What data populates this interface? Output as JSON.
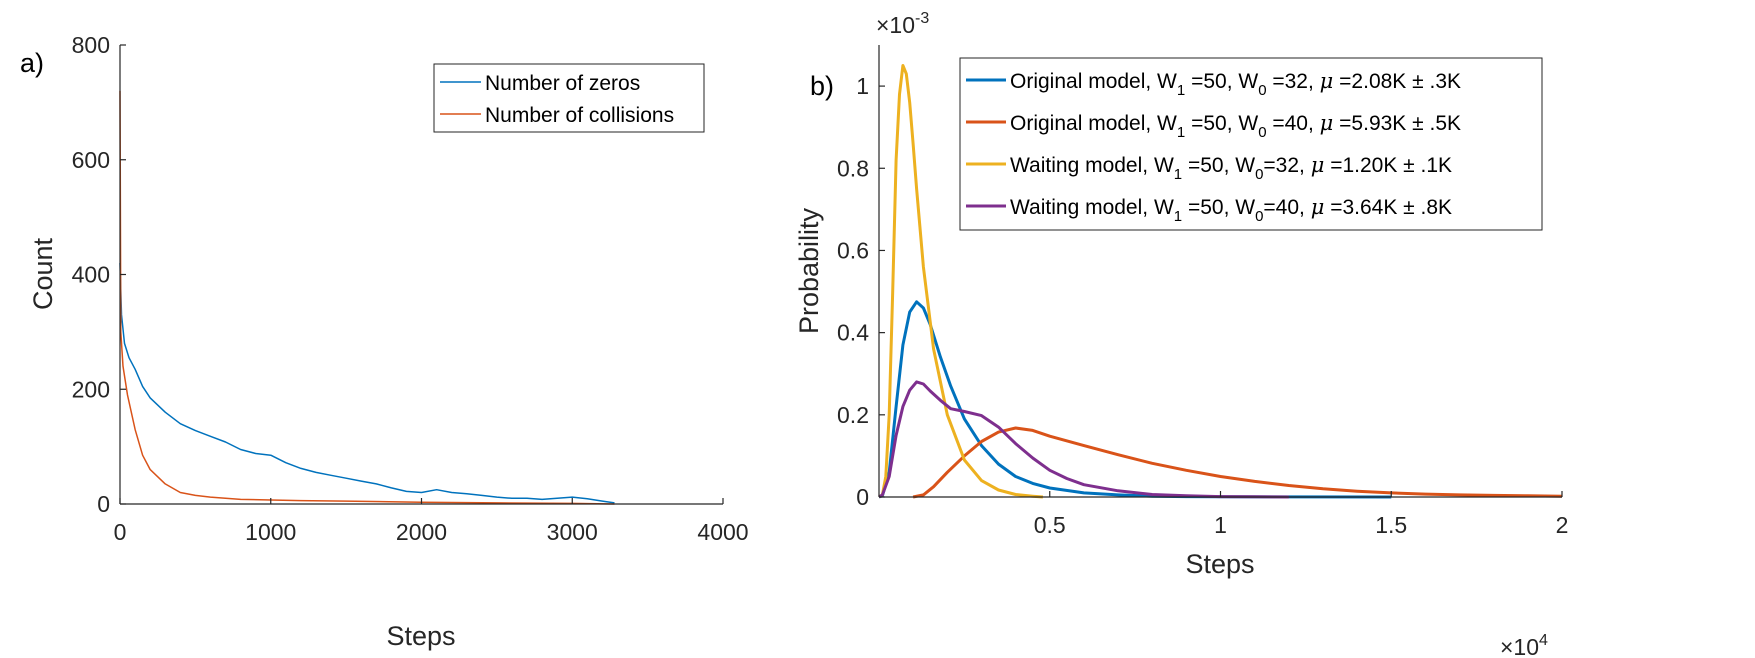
{
  "chart_data": [
    {
      "type": "line",
      "panel_label": "a)",
      "xlabel": "Steps",
      "ylabel": "Count",
      "xlim": [
        0,
        4000
      ],
      "ylim": [
        0,
        800
      ],
      "xticks": [
        0,
        1000,
        2000,
        3000,
        4000
      ],
      "xtick_labels": [
        "0",
        "1000",
        "2000",
        "3000",
        "4000"
      ],
      "yticks": [
        0,
        200,
        400,
        600,
        800
      ],
      "ytick_labels": [
        "0",
        "200",
        "400",
        "600",
        "800"
      ],
      "grid": false,
      "legend_position": "top-right",
      "series": [
        {
          "name": "Number of zeros",
          "color": "#0072BD",
          "x": [
            0,
            10,
            30,
            60,
            100,
            150,
            200,
            300,
            400,
            500,
            600,
            700,
            800,
            900,
            1000,
            1100,
            1200,
            1300,
            1400,
            1500,
            1600,
            1700,
            1800,
            1900,
            2000,
            2100,
            2200,
            2300,
            2400,
            2500,
            2600,
            2700,
            2800,
            2900,
            3000,
            3100,
            3200,
            3280
          ],
          "y": [
            420,
            330,
            280,
            255,
            235,
            205,
            185,
            160,
            140,
            128,
            118,
            108,
            95,
            88,
            85,
            72,
            62,
            55,
            50,
            45,
            40,
            35,
            28,
            22,
            20,
            25,
            20,
            18,
            15,
            12,
            10,
            10,
            8,
            10,
            12,
            9,
            5,
            2
          ]
        },
        {
          "name": "Number of collisions",
          "color": "#D95319",
          "x": [
            0,
            5,
            20,
            50,
            100,
            150,
            200,
            300,
            400,
            500,
            600,
            800,
            1000,
            1200,
            1500,
            2000,
            2500,
            3000,
            3280
          ],
          "y": [
            720,
            300,
            240,
            190,
            130,
            85,
            60,
            35,
            20,
            15,
            12,
            8,
            7,
            6,
            5,
            3,
            2,
            1,
            0
          ]
        }
      ]
    },
    {
      "type": "line",
      "panel_label": "b)",
      "xlabel": "Steps",
      "ylabel": "Probability",
      "x_multiplier_base": "×10",
      "x_multiplier_exp": "4",
      "y_multiplier_base": "×10",
      "y_multiplier_exp": "-3",
      "xlim": [
        0,
        20000
      ],
      "ylim": [
        0,
        0.0011
      ],
      "xticks": [
        5000,
        10000,
        15000,
        20000
      ],
      "xtick_labels": [
        "0.5",
        "1",
        "1.5",
        "2"
      ],
      "yticks": [
        0,
        0.0002,
        0.0004,
        0.0006,
        0.0008,
        0.001
      ],
      "ytick_labels": [
        "0",
        "0.2",
        "0.4",
        "0.6",
        "0.8",
        "1"
      ],
      "grid": false,
      "legend_position": "top-right",
      "series": [
        {
          "name": "Original model, W1 =50, W0 =32, μ =2.08K ± .3K",
          "legend_parts": [
            "Original model, W",
            "1",
            " =50, W",
            "0",
            " =32, ",
            "μ",
            " =2.08K ±  .3K"
          ],
          "color": "#0072BD",
          "x": [
            0,
            100,
            300,
            500,
            700,
            900,
            1100,
            1300,
            1500,
            1800,
            2100,
            2500,
            3000,
            3500,
            4000,
            4500,
            5000,
            6000,
            7000,
            8000,
            9000,
            10000,
            12000,
            15000
          ],
          "y": [
            0,
            3e-06,
            6e-05,
            0.00022,
            0.00037,
            0.00045,
            0.000475,
            0.00046,
            0.00042,
            0.00034,
            0.00027,
            0.00019,
            0.000125,
            8e-05,
            5e-05,
            3.3e-05,
            2.2e-05,
            1e-05,
            5e-06,
            2e-06,
            1e-06,
            5e-07,
            2e-07,
            0
          ]
        },
        {
          "name": "Original model, W1 =50, W0 =40, μ =5.93K ± .5K",
          "legend_parts": [
            "Original model, W",
            "1",
            " =50, W",
            "0",
            " =40, ",
            "μ",
            " =5.93K ± .5K"
          ],
          "color": "#D95319",
          "x": [
            1000,
            1300,
            1600,
            2000,
            2500,
            3000,
            3500,
            4000,
            4500,
            5000,
            6000,
            7000,
            8000,
            9000,
            10000,
            11000,
            12000,
            13000,
            14000,
            15000,
            16000,
            17000,
            18000,
            19000,
            20000
          ],
          "y": [
            0,
            5e-06,
            2.5e-05,
            6e-05,
            0.0001,
            0.000135,
            0.000158,
            0.000168,
            0.000162,
            0.000148,
            0.000125,
            0.000103,
            8.2e-05,
            6.5e-05,
            5e-05,
            3.8e-05,
            2.8e-05,
            2e-05,
            1.4e-05,
            1e-05,
            7e-06,
            5e-06,
            4e-06,
            3e-06,
            2e-06
          ]
        },
        {
          "name": "Waiting model, W1 =50, W0=32, μ =1.20K ± .1K",
          "legend_parts": [
            "Waiting model, W",
            "1",
            " =50, W",
            "0",
            "=32, ",
            "μ",
            " =1.20K ± .1K"
          ],
          "color": "#EDB120",
          "x": [
            0,
            100,
            200,
            300,
            400,
            500,
            600,
            700,
            800,
            900,
            1000,
            1100,
            1300,
            1600,
            2000,
            2500,
            3000,
            3500,
            4000,
            4500,
            4800
          ],
          "y": [
            0,
            5e-06,
            5e-05,
            0.0002,
            0.0005,
            0.00082,
            0.00098,
            0.00105,
            0.00103,
            0.00096,
            0.00086,
            0.00075,
            0.00056,
            0.00036,
            0.0002,
            9e-05,
            4e-05,
            1.7e-05,
            6e-06,
            2e-06,
            0
          ]
        },
        {
          "name": "Waiting model, W1 =50, W0=40, μ =3.64K ± .8K",
          "legend_parts": [
            "Waiting model, W",
            "1",
            " =50, W",
            "0",
            "=40, ",
            "μ",
            " =3.64K ± .8K"
          ],
          "color": "#7E2F8E",
          "x": [
            0,
            100,
            300,
            500,
            700,
            900,
            1100,
            1300,
            1500,
            1800,
            2100,
            2500,
            3000,
            3500,
            4000,
            4500,
            5000,
            5500,
            6000,
            7000,
            8000,
            9000,
            10000,
            11000,
            12000
          ],
          "y": [
            0,
            5e-06,
            5e-05,
            0.00015,
            0.00022,
            0.00026,
            0.00028,
            0.000275,
            0.000258,
            0.000235,
            0.000215,
            0.000208,
            0.000198,
            0.00017,
            0.00013,
            9.5e-05,
            6.5e-05,
            4.5e-05,
            3e-05,
            1.5e-05,
            6e-06,
            3e-06,
            1e-06,
            5e-07,
            0
          ]
        }
      ]
    }
  ]
}
